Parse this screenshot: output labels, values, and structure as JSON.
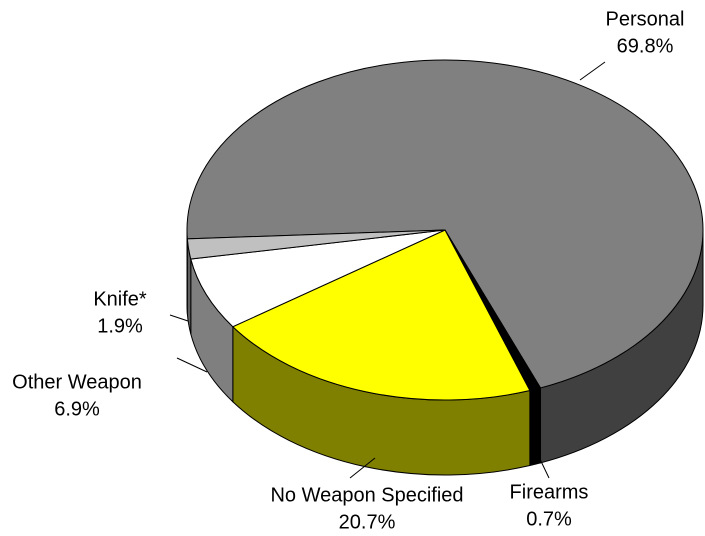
{
  "chart_data": {
    "type": "pie",
    "categories": [
      "Personal",
      "Firearms",
      "No Weapon Specified",
      "Other Weapon",
      "Knife*"
    ],
    "values": [
      69.8,
      0.7,
      20.7,
      6.9,
      1.9
    ],
    "value_labels": [
      "69.8%",
      "0.7%",
      "20.7%",
      "6.9%",
      "1.9%"
    ],
    "colors": [
      "#808080",
      "#000000",
      "#ffff00",
      "#ffffff",
      "#c0c0c0"
    ],
    "three_d": true
  }
}
